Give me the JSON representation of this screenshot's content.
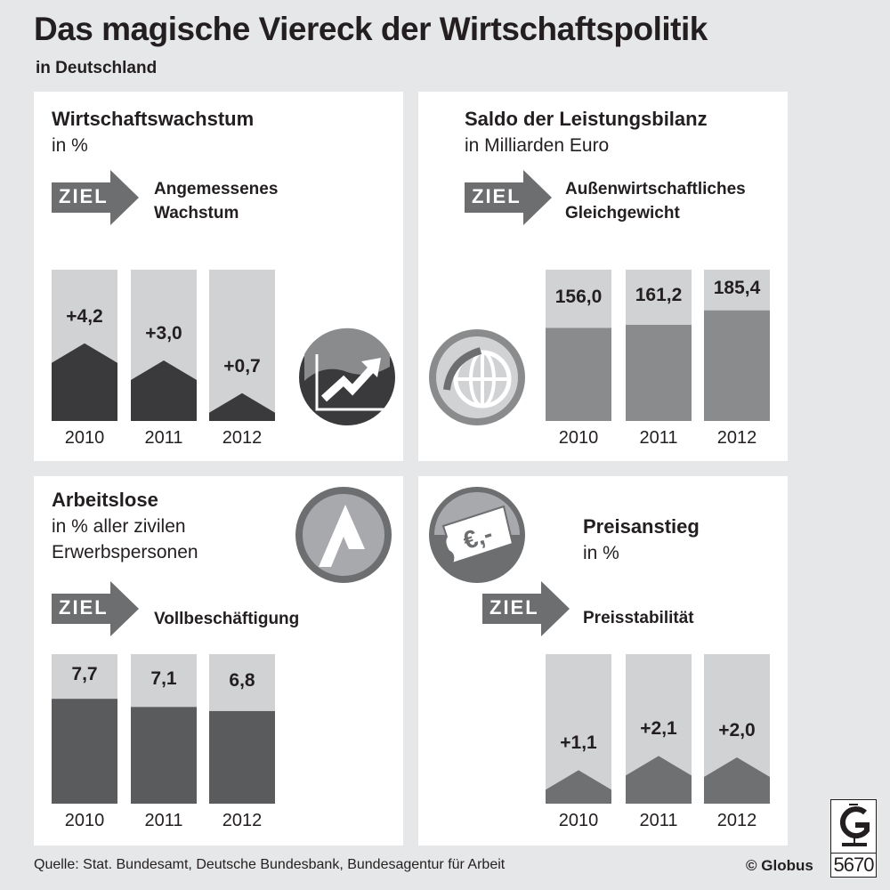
{
  "title": "Das magische Viereck der Wirtschaftspolitik",
  "subtitle": "in Deutschland",
  "ziel_label": "ZIEL",
  "colors": {
    "background": "#e6e7e8",
    "panel": "#ffffff",
    "bar_light": "#d1d2d4",
    "arrow": "#6d6e70"
  },
  "chart_data": [
    {
      "type": "bar",
      "title": "Wirtschaftswachstum",
      "unit": "in %",
      "goal": "Angemessenes Wachstum",
      "categories": [
        "2010",
        "2011",
        "2012"
      ],
      "values": [
        4.2,
        3.0,
        0.7
      ],
      "labels": [
        "+4,2",
        "+3,0",
        "+0,7"
      ],
      "color": "#3a3a3c",
      "shape": "peak",
      "icon": "rising-chart-icon"
    },
    {
      "type": "bar",
      "title": "Saldo der Leistungsbilanz",
      "unit": "in Milliarden Euro",
      "goal": "Außenwirtschaftliches Gleichgewicht",
      "categories": [
        "2010",
        "2011",
        "2012"
      ],
      "values": [
        156.0,
        161.2,
        185.4
      ],
      "labels": [
        "156,0",
        "161,2",
        "185,4"
      ],
      "color": "#8a8b8d",
      "shape": "flat",
      "icon": "globe-icon"
    },
    {
      "type": "bar",
      "title": "Arbeitslose",
      "unit": "in % aller zivilen Erwerbspersonen",
      "goal": "Vollbeschäftigung",
      "categories": [
        "2010",
        "2011",
        "2012"
      ],
      "values": [
        7.7,
        7.1,
        6.8
      ],
      "labels": [
        "7,7",
        "7,1",
        "6,8"
      ],
      "color": "#5a5b5d",
      "shape": "flat",
      "icon": "employment-agency-logo-icon"
    },
    {
      "type": "bar",
      "title": "Preisanstieg",
      "unit": "in %",
      "goal": "Preisstabilität",
      "categories": [
        "2010",
        "2011",
        "2012"
      ],
      "values": [
        1.1,
        2.1,
        2.0
      ],
      "labels": [
        "+1,1",
        "+2,1",
        "+2,0"
      ],
      "color": "#6f7072",
      "shape": "peak",
      "icon": "price-tag-euro-icon"
    }
  ],
  "footer": {
    "source": "Quelle: Stat. Bundesamt, Deutsche Bundesbank, Bundesagentur für Arbeit",
    "copyright": "© Globus",
    "number": "5670"
  }
}
